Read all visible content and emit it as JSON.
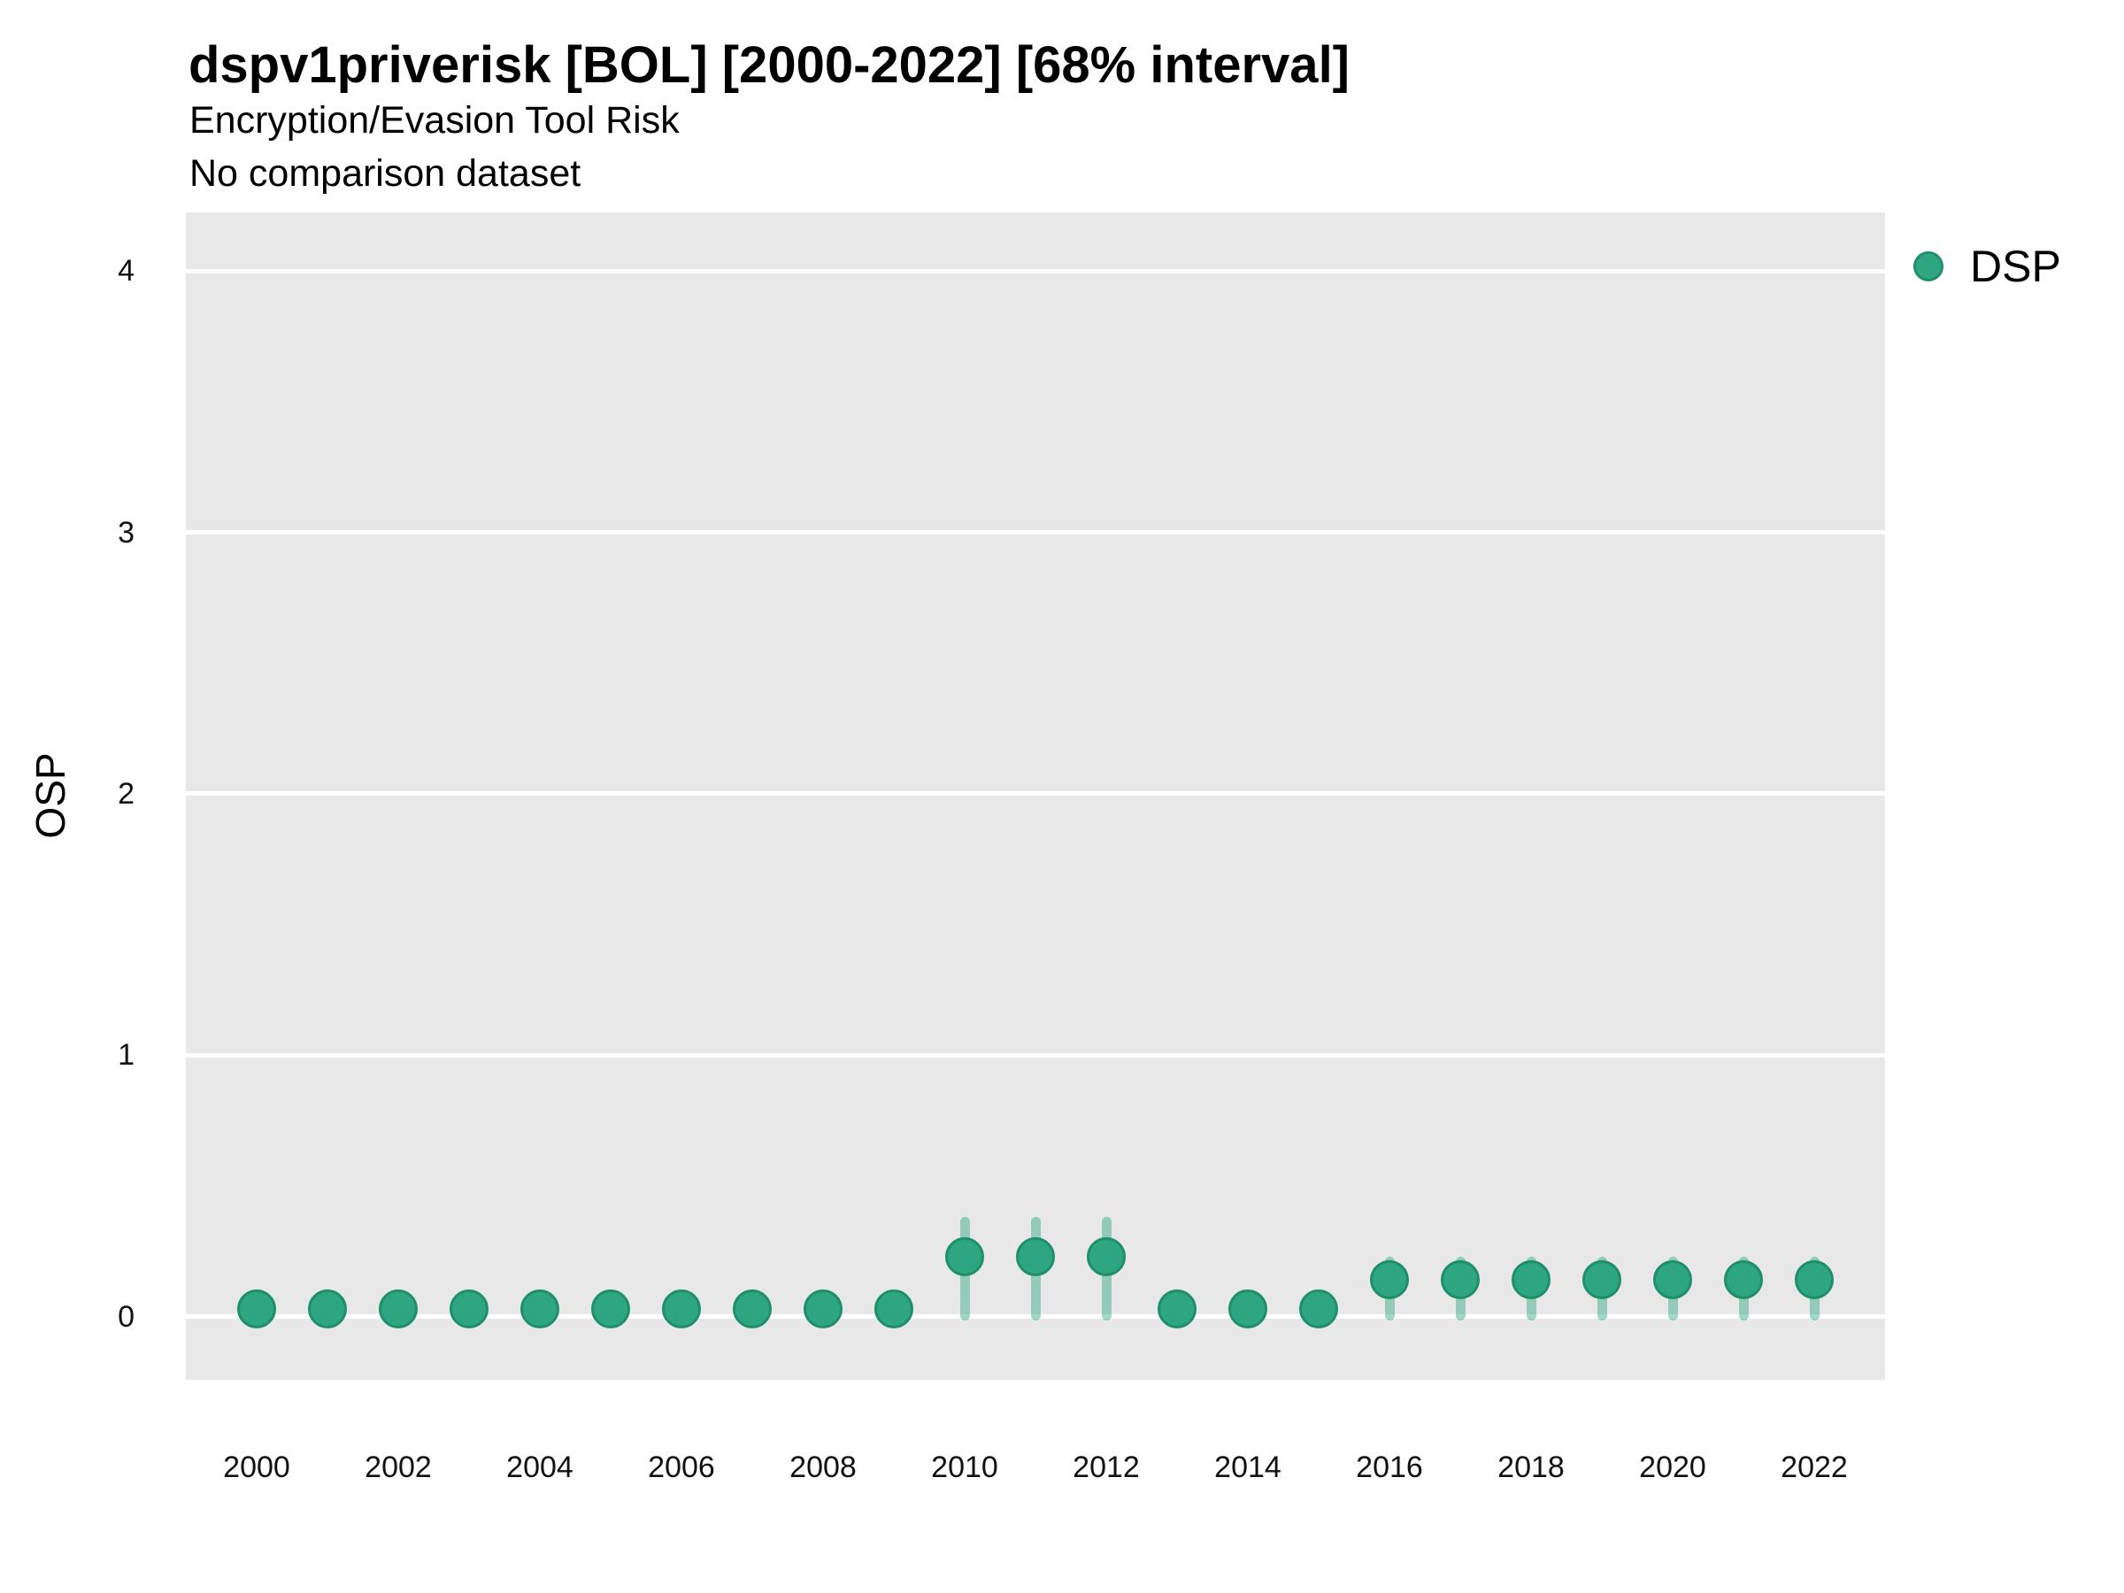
{
  "title": "dspv1priverisk [BOL] [2000-2022] [68% interval]",
  "subtitle": "Encryption/Evasion Tool Risk",
  "note": "No comparison dataset",
  "legend": {
    "label": "DSP"
  },
  "colors": {
    "panel_background": "#E8E8E8",
    "gridline": "#FFFFFF",
    "point_fill": "#2EA681",
    "point_stroke": "#1F8F68",
    "interval_bar": "rgba(46,166,129,0.45)",
    "text": "#000000"
  },
  "chart_data": {
    "type": "scatter",
    "title": "dspv1priverisk [BOL] [2000-2022] [68% interval]",
    "subtitle": "Encryption/Evasion Tool Risk",
    "note": "No comparison dataset",
    "interval_level": "68%",
    "xlabel": "",
    "ylabel": "OSP",
    "x_tick_labels": [
      2000,
      2002,
      2004,
      2006,
      2008,
      2010,
      2012,
      2014,
      2016,
      2018,
      2020,
      2022
    ],
    "y_ticks": [
      0,
      1,
      2,
      3,
      4
    ],
    "xlim": [
      1999,
      2023
    ],
    "ylim": [
      -0.24,
      4.22
    ],
    "grid": "horizontal-major-only",
    "legend_position": "top-right",
    "series": [
      {
        "name": "DSP",
        "points": [
          {
            "year": 2000,
            "value": 0.03,
            "lo": null,
            "hi": null
          },
          {
            "year": 2001,
            "value": 0.03,
            "lo": null,
            "hi": null
          },
          {
            "year": 2002,
            "value": 0.03,
            "lo": null,
            "hi": null
          },
          {
            "year": 2003,
            "value": 0.03,
            "lo": null,
            "hi": null
          },
          {
            "year": 2004,
            "value": 0.03,
            "lo": null,
            "hi": null
          },
          {
            "year": 2005,
            "value": 0.03,
            "lo": null,
            "hi": null
          },
          {
            "year": 2006,
            "value": 0.03,
            "lo": null,
            "hi": null
          },
          {
            "year": 2007,
            "value": 0.03,
            "lo": null,
            "hi": null
          },
          {
            "year": 2008,
            "value": 0.03,
            "lo": null,
            "hi": null
          },
          {
            "year": 2009,
            "value": 0.03,
            "lo": null,
            "hi": null
          },
          {
            "year": 2010,
            "value": 0.23,
            "lo": 0.0,
            "hi": 0.38
          },
          {
            "year": 2011,
            "value": 0.23,
            "lo": 0.0,
            "hi": 0.38
          },
          {
            "year": 2012,
            "value": 0.23,
            "lo": 0.0,
            "hi": 0.38
          },
          {
            "year": 2013,
            "value": 0.03,
            "lo": null,
            "hi": null
          },
          {
            "year": 2014,
            "value": 0.03,
            "lo": null,
            "hi": null
          },
          {
            "year": 2015,
            "value": 0.03,
            "lo": null,
            "hi": null
          },
          {
            "year": 2016,
            "value": 0.14,
            "lo": 0.0,
            "hi": 0.23
          },
          {
            "year": 2017,
            "value": 0.14,
            "lo": 0.0,
            "hi": 0.23
          },
          {
            "year": 2018,
            "value": 0.14,
            "lo": 0.0,
            "hi": 0.23
          },
          {
            "year": 2019,
            "value": 0.14,
            "lo": 0.0,
            "hi": 0.23
          },
          {
            "year": 2020,
            "value": 0.14,
            "lo": 0.0,
            "hi": 0.23
          },
          {
            "year": 2021,
            "value": 0.14,
            "lo": 0.0,
            "hi": 0.23
          },
          {
            "year": 2022,
            "value": 0.14,
            "lo": 0.0,
            "hi": 0.23
          }
        ]
      }
    ]
  }
}
